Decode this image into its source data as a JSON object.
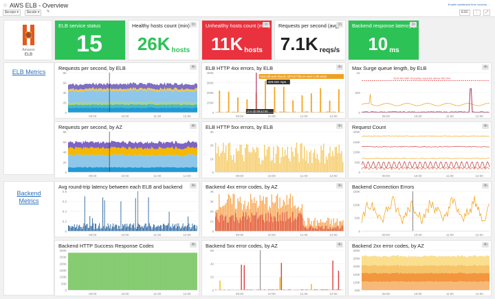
{
  "header": {
    "title": "AWS ELB - Overview",
    "scope_label": "$scope",
    "scope_btn": "▾",
    "scale_label": "$scale",
    "scale_btn": "▾",
    "edit": "✎",
    "shared": "Enable dashboard time controls…",
    "tz": "ESC",
    "menu": "⋮"
  },
  "logo": {
    "line1": "Amazon",
    "line2": "ELB"
  },
  "sections": {
    "elb": "ELB Metrics",
    "backend_1": "Backend",
    "backend_2": "Metrics"
  },
  "qv": [
    {
      "title": "ELB service status",
      "badge": "",
      "value": "15",
      "unit": "",
      "bg": "#2dc256",
      "fg": "#ffffff"
    },
    {
      "title": "Healthy hosts count (min)",
      "badge": "1h",
      "value": "26K",
      "unit": "hosts",
      "bg": "#ffffff",
      "fg": "#2dc256"
    },
    {
      "title": "Unhealthy hosts count (max)",
      "badge": "1h",
      "value": "11K",
      "unit": "hosts",
      "bg": "#e9323e",
      "fg": "#ffffff"
    },
    {
      "title": "Requests per second (avg)",
      "badge": "1h",
      "value": "7.1K",
      "unit": "reqs/s",
      "bg": "#ffffff",
      "fg": "#222222"
    },
    {
      "title": "Backend response latency (…",
      "badge": "1h",
      "value": "10",
      "unit": "ms",
      "bg": "#2dc256",
      "fg": "#ffffff"
    }
  ],
  "ticks": {
    "x": [
      "09:00",
      "10:00",
      "11:00",
      "12:00"
    ],
    "x5": [
      "09:00",
      "10:00",
      "11:00",
      "12:00"
    ]
  },
  "charts": [
    {
      "title": "Requests per second, by ELB",
      "badge": "4h",
      "y": [
        "8K",
        "6K",
        "4K",
        "2K",
        "0"
      ],
      "kind": "stack1"
    },
    {
      "title": "ELB HTTP 4xx errors, by ELB",
      "badge": "4h",
      "y": [
        "400K",
        "300K",
        "200K",
        "100K",
        "0"
      ],
      "kind": "spikes",
      "tooltip_host": "host:elb-web-shard1-287417755.us-east-1.elb.amaz",
      "tooltip_val": "329.04K rsps",
      "tooltip_time": "2 m @ 09:42:00",
      "xt": [
        "09:00",
        "10:00",
        "11:00",
        "12:00"
      ]
    },
    {
      "title": "Max Surge queue length, by ELB",
      "badge": "4h",
      "y": [
        "1K",
        "500",
        "0"
      ],
      "kind": "surge",
      "annot": "ELB will start dropping requests above this line"
    },
    {
      "title": "Requests per second, by AZ",
      "badge": "4h",
      "y": [
        "8K",
        "6K",
        "4K",
        "2K",
        "0"
      ],
      "kind": "stack2"
    },
    {
      "title": "ELB HTTP 5xx errors, by ELB",
      "badge": "4h",
      "y": [
        "3K",
        "2K",
        "1K",
        "0"
      ],
      "kind": "yellowdense"
    },
    {
      "title": "Request Count",
      "badge": "4h",
      "y": [
        "200K",
        "150K",
        "100K",
        "50K",
        "0"
      ],
      "kind": "reqcount"
    },
    {
      "title": "Avg round-trip latency between each ELB and backend",
      "badge": "4h",
      "y": [
        "0.8",
        "0.6",
        "0.4",
        "0.2",
        "0"
      ],
      "kind": "latency"
    },
    {
      "title": "Backend 4xx error codes, by AZ",
      "badge": "4h",
      "y": [
        "4K",
        "3K",
        "2K",
        "1K",
        "0"
      ],
      "kind": "red4xx"
    },
    {
      "title": "Backend Connection Errors",
      "badge": "4h",
      "y": [
        "150K",
        "100K",
        "50K",
        "0"
      ],
      "kind": "connerr"
    },
    {
      "title": "Backend HTTP Success Response Codes",
      "badge": "4h",
      "y": [
        "300K",
        "250K",
        "200K",
        "150K",
        "100K",
        "50K",
        "0"
      ],
      "kind": "green"
    },
    {
      "title": "Backend 5xx error codes, by AZ",
      "badge": "4h",
      "y": [
        "60",
        "40",
        "20",
        "0"
      ],
      "kind": "b5xx"
    },
    {
      "title": "Backend 2xx error codes, by AZ",
      "badge": "4h",
      "y": [
        "300K",
        "250K",
        "200K",
        "150K",
        "100K",
        "50K"
      ],
      "kind": "b2xx"
    }
  ]
}
